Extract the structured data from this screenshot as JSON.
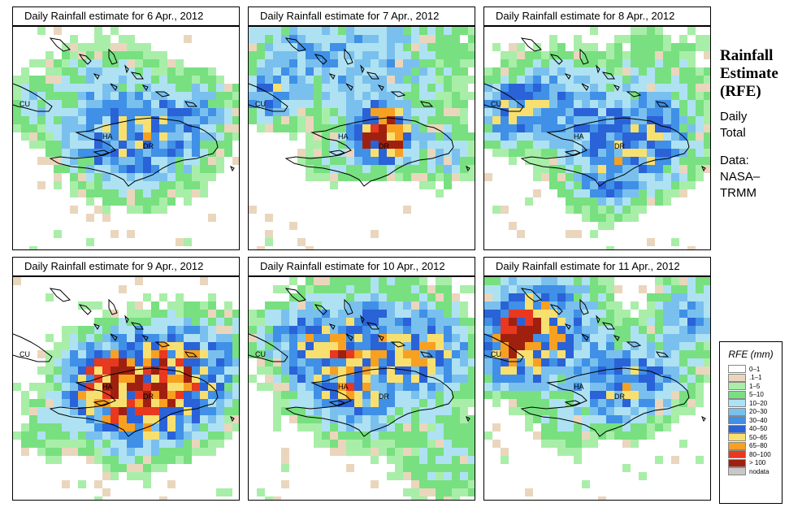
{
  "panels": [
    {
      "id": "p6",
      "title": "Daily Rainfall estimate for  6 Apr., 2012",
      "day": 6
    },
    {
      "id": "p7",
      "title": "Daily Rainfall estimate for  7 Apr., 2012",
      "day": 7
    },
    {
      "id": "p8",
      "title": "Daily Rainfall estimate for  8 Apr., 2012",
      "day": 8
    },
    {
      "id": "p9",
      "title": "Daily Rainfall estimate for  9 Apr., 2012",
      "day": 9
    },
    {
      "id": "p10",
      "title": "Daily Rainfall estimate for  10 Apr., 2012",
      "day": 10
    },
    {
      "id": "p11",
      "title": "Daily Rainfall estimate for  11 Apr., 2012",
      "day": 11
    }
  ],
  "map_labels": {
    "cuba": "CU",
    "haiti": "HA",
    "dominican_republic": "DR"
  },
  "side": {
    "title_lines": [
      "Rainfall",
      "Estimate",
      "(RFE)"
    ],
    "desc_lines": [
      "Daily",
      "Total"
    ],
    "source_lines": [
      "Data:",
      "NASA–",
      "TRMM"
    ]
  },
  "legend": {
    "title": "RFE (mm)",
    "entries": [
      {
        "label": "0–1",
        "color": "#ffffff"
      },
      {
        "label": ".1–1",
        "color": "#ead6bd"
      },
      {
        "label": "1–5",
        "color": "#a8eea8"
      },
      {
        "label": "5–10",
        "color": "#78e080"
      },
      {
        "label": "10–20",
        "color": "#aee2f2"
      },
      {
        "label": "20–30",
        "color": "#7ac0ee"
      },
      {
        "label": "30–40",
        "color": "#3f90e6"
      },
      {
        "label": "40–50",
        "color": "#2a62d8"
      },
      {
        "label": "50–65",
        "color": "#f8e070"
      },
      {
        "label": "65–80",
        "color": "#f8a020"
      },
      {
        "label": "80–100",
        "color": "#e83820"
      },
      {
        "label": "> 100",
        "color": "#a02010"
      },
      {
        "label": "nodata",
        "color": "#c8c8c8"
      }
    ]
  }
}
